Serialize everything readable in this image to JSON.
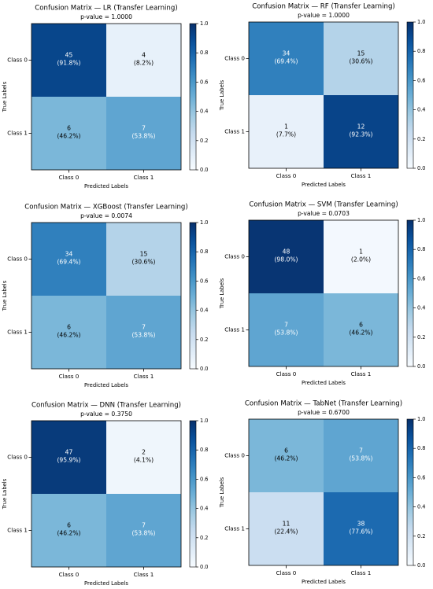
{
  "chart_data": [
    {
      "type": "heatmap",
      "title": "Confusion Matrix — LR (Transfer Learning)",
      "subtitle": "p-value = 1.0000",
      "xlabel": "Predicted Labels",
      "ylabel": "True Labels",
      "x_categories": [
        "Class 0",
        "Class 1"
      ],
      "y_categories": [
        "Class 0",
        "Class 1"
      ],
      "counts": [
        [
          45,
          4
        ],
        [
          6,
          7
        ]
      ],
      "cell_labels": [
        [
          "(91.8%)",
          "(8.2%)"
        ],
        [
          "(46.2%)",
          "(53.8%)"
        ]
      ],
      "values": [
        [
          0.918,
          0.082
        ],
        [
          0.462,
          0.538
        ]
      ],
      "colorbar": {
        "range": [
          0,
          1
        ],
        "ticks": [
          "0.0",
          "0.2",
          "0.4",
          "0.6",
          "0.8",
          "1.0"
        ]
      }
    },
    {
      "type": "heatmap",
      "title": "Confusion Matrix — RF (Transfer Learning)",
      "subtitle": "p-value = 1.0000",
      "xlabel": "Predicted Labels",
      "ylabel": "True Labels",
      "x_categories": [
        "Class 0",
        "Class 1"
      ],
      "y_categories": [
        "Class 0",
        "Class 1"
      ],
      "counts": [
        [
          34,
          15
        ],
        [
          1,
          12
        ]
      ],
      "cell_labels": [
        [
          "(69.4%)",
          "(30.6%)"
        ],
        [
          "(7.7%)",
          "(92.3%)"
        ]
      ],
      "values": [
        [
          0.694,
          0.306
        ],
        [
          0.077,
          0.923
        ]
      ],
      "colorbar": {
        "range": [
          0,
          1
        ],
        "ticks": [
          "0.0",
          "0.2",
          "0.4",
          "0.6",
          "0.8",
          "1.0"
        ]
      }
    },
    {
      "type": "heatmap",
      "title": "Confusion Matrix — XGBoost (Transfer Learning)",
      "subtitle": "p-value = 0.0074",
      "xlabel": "Predicted Labels",
      "ylabel": "True Labels",
      "x_categories": [
        "Class 0",
        "Class 1"
      ],
      "y_categories": [
        "Class 0",
        "Class 1"
      ],
      "counts": [
        [
          34,
          15
        ],
        [
          6,
          7
        ]
      ],
      "cell_labels": [
        [
          "(69.4%)",
          "(30.6%)"
        ],
        [
          "(46.2%)",
          "(53.8%)"
        ]
      ],
      "values": [
        [
          0.694,
          0.306
        ],
        [
          0.462,
          0.538
        ]
      ],
      "colorbar": {
        "range": [
          0,
          1
        ],
        "ticks": [
          "0.0",
          "0.2",
          "0.4",
          "0.6",
          "0.8",
          "1.0"
        ]
      }
    },
    {
      "type": "heatmap",
      "title": "Confusion Matrix — SVM (Transfer Learning)",
      "subtitle": "p-value = 0.0703",
      "xlabel": "Predicted Labels",
      "ylabel": "True Labels",
      "x_categories": [
        "Class 0",
        "Class 1"
      ],
      "y_categories": [
        "Class 0",
        "Class 1"
      ],
      "counts": [
        [
          48,
          1
        ],
        [
          7,
          6
        ]
      ],
      "cell_labels": [
        [
          "(98.0%)",
          "(2.0%)"
        ],
        [
          "(53.8%)",
          "(46.2%)"
        ]
      ],
      "values": [
        [
          0.98,
          0.02
        ],
        [
          0.538,
          0.462
        ]
      ],
      "colorbar": {
        "range": [
          0,
          1
        ],
        "ticks": [
          "0.0",
          "0.2",
          "0.4",
          "0.6",
          "0.8",
          "1.0"
        ]
      }
    },
    {
      "type": "heatmap",
      "title": "Confusion Matrix — DNN (Transfer Learning)",
      "subtitle": "p-value = 0.3750",
      "xlabel": "Predicted Labels",
      "ylabel": "True Labels",
      "x_categories": [
        "Class 0",
        "Class 1"
      ],
      "y_categories": [
        "Class 0",
        "Class 1"
      ],
      "counts": [
        [
          47,
          2
        ],
        [
          6,
          7
        ]
      ],
      "cell_labels": [
        [
          "(95.9%)",
          "(4.1%)"
        ],
        [
          "(46.2%)",
          "(53.8%)"
        ]
      ],
      "values": [
        [
          0.959,
          0.041
        ],
        [
          0.462,
          0.538
        ]
      ],
      "colorbar": {
        "range": [
          0,
          1
        ],
        "ticks": [
          "0.0",
          "0.2",
          "0.4",
          "0.6",
          "0.8",
          "1.0"
        ]
      }
    },
    {
      "type": "heatmap",
      "title": "Confusion Matrix — TabNet (Transfer Learning)",
      "subtitle": "p-value = 0.6700",
      "xlabel": "Predicted Labels",
      "ylabel": "True Labels",
      "x_categories": [
        "Class 0",
        "Class 1"
      ],
      "y_categories": [
        "Class 0",
        "Class 1"
      ],
      "counts": [
        [
          6,
          7
        ],
        [
          11,
          38
        ]
      ],
      "cell_labels": [
        [
          "(46.2%)",
          "(53.8%)"
        ],
        [
          "(22.4%)",
          "(77.6%)"
        ]
      ],
      "values": [
        [
          0.462,
          0.538
        ],
        [
          0.224,
          0.776
        ]
      ],
      "colorbar": {
        "range": [
          0,
          1
        ],
        "ticks": [
          "0.0",
          "0.2",
          "0.4",
          "0.6",
          "0.8",
          "1.0"
        ]
      }
    }
  ],
  "colors": {
    "colormap": "Blues",
    "stops": [
      "#f7fbff",
      "#deebf7",
      "#c6dbef",
      "#9ecae1",
      "#6baed6",
      "#4292c6",
      "#2171b5",
      "#08519c",
      "#08306b"
    ],
    "text_dark": "#000000",
    "text_light": "#ffffff"
  }
}
